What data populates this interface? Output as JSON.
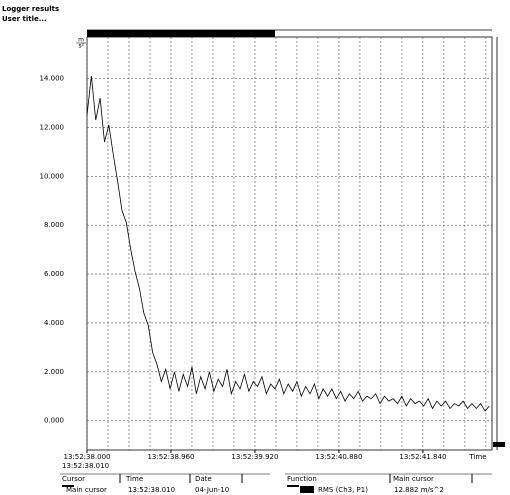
{
  "header": {
    "title": "Logger results",
    "subtitle": "User title..."
  },
  "chart_data": {
    "type": "line",
    "y_unit": [
      "m",
      "s²"
    ],
    "xlabel": "Time",
    "cursor_time": "13:52:38.010",
    "color": "#000000",
    "x": [
      0,
      0.05,
      0.1,
      0.15,
      0.2,
      0.25,
      0.3,
      0.35,
      0.4,
      0.45,
      0.5,
      0.55,
      0.6,
      0.65,
      0.7,
      0.75,
      0.8,
      0.85,
      0.9,
      0.95,
      1,
      1.05,
      1.1,
      1.15,
      1.2,
      1.25,
      1.3,
      1.35,
      1.4,
      1.45,
      1.5,
      1.55,
      1.6,
      1.65,
      1.7,
      1.75,
      1.8,
      1.85,
      1.9,
      1.95,
      2,
      2.05,
      2.1,
      2.15,
      2.2,
      2.25,
      2.3,
      2.35,
      2.4,
      2.45,
      2.5,
      2.55,
      2.6,
      2.65,
      2.7,
      2.75,
      2.8,
      2.85,
      2.9,
      2.95,
      3,
      3.05,
      3.1,
      3.15,
      3.2,
      3.25,
      3.3,
      3.35,
      3.4,
      3.45,
      3.5,
      3.55,
      3.6,
      3.65,
      3.7,
      3.75,
      3.8,
      3.85,
      3.9,
      3.95,
      4,
      4.05,
      4.1,
      4.15,
      4.2,
      4.25,
      4.3,
      4.35,
      4.4,
      4.45,
      4.5,
      4.55,
      4.6
    ],
    "values": [
      12.5,
      14.1,
      12.3,
      13.2,
      11.4,
      12.1,
      10.9,
      9.8,
      8.6,
      8.1,
      7.0,
      6.1,
      5.4,
      4.4,
      3.9,
      2.8,
      2.3,
      1.6,
      2.1,
      1.3,
      2.0,
      1.2,
      1.9,
      1.4,
      2.2,
      1.1,
      1.8,
      1.3,
      2.0,
      1.2,
      1.7,
      1.4,
      2.1,
      1.1,
      1.6,
      1.3,
      1.9,
      1.2,
      1.6,
      1.4,
      1.8,
      1.1,
      1.5,
      1.3,
      1.7,
      1.1,
      1.5,
      1.2,
      1.6,
      1.0,
      1.4,
      1.1,
      1.5,
      0.9,
      1.3,
      1.0,
      1.3,
      0.9,
      1.2,
      0.8,
      1.1,
      0.9,
      1.2,
      0.8,
      1.0,
      0.9,
      1.1,
      0.7,
      1.0,
      0.8,
      0.9,
      0.7,
      1.0,
      0.6,
      0.9,
      0.7,
      0.8,
      0.6,
      0.9,
      0.5,
      0.8,
      0.6,
      0.8,
      0.5,
      0.7,
      0.6,
      0.8,
      0.5,
      0.7,
      0.5,
      0.7,
      0.4,
      0.6
    ],
    "xlim": [
      0,
      4.63
    ],
    "xticks": [
      {
        "value": 0,
        "label": "13:52:38.000"
      },
      {
        "value": 0.96,
        "label": "13:52:38.960"
      },
      {
        "value": 1.92,
        "label": "13:52:39.920"
      },
      {
        "value": 2.88,
        "label": "13:52:40.880"
      },
      {
        "value": 3.84,
        "label": "13:52:41.840"
      }
    ],
    "xminorticks": [
      0.24,
      0.48,
      0.72,
      1.2,
      1.44,
      1.68,
      2.16,
      2.4,
      2.64,
      3.12,
      3.36,
      3.6,
      4.08,
      4.32,
      4.56
    ],
    "ylim": [
      -1.2,
      15.7
    ],
    "yticks": [
      {
        "value": 0,
        "label": "0.000"
      },
      {
        "value": 2,
        "label": "2.000"
      },
      {
        "value": 4,
        "label": "4.000"
      },
      {
        "value": 6,
        "label": "6.000"
      },
      {
        "value": 8,
        "label": "8.000"
      },
      {
        "value": 10,
        "label": "10.000"
      },
      {
        "value": 12,
        "label": "12.000"
      },
      {
        "value": 14,
        "label": "14.000"
      }
    ],
    "grid": true
  },
  "cursor_table": {
    "columns": [
      "Cursor",
      "Time",
      "Date"
    ],
    "rows": [
      [
        "Main cursor",
        "13:52:38.010",
        "04-Jun-10"
      ]
    ]
  },
  "function_table": {
    "columns": [
      "Function",
      "Main cursor"
    ],
    "rows": [
      [
        "RMS (Ch3, P1)",
        "12.882 m/s^2"
      ]
    ]
  }
}
